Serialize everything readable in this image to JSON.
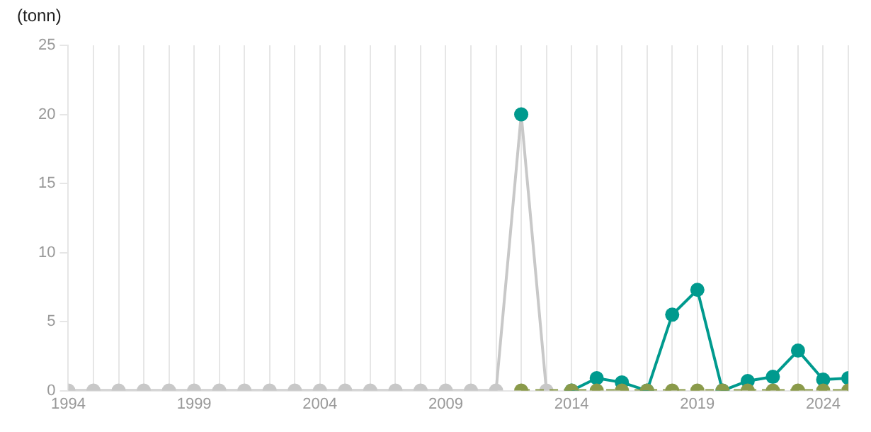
{
  "chart_data": {
    "type": "line",
    "ylabel": "(tonn)",
    "xlim": [
      1994,
      2025
    ],
    "ylim": [
      0,
      25
    ],
    "yticks": [
      0,
      5,
      10,
      15,
      20,
      25
    ],
    "xticks": [
      1994,
      {
        "value": 1995,
        "label": null
      },
      {
        "value": 1996,
        "label": null
      },
      {
        "value": 1997,
        "label": null
      },
      {
        "value": 1998,
        "label": null
      },
      1999,
      {
        "value": 2000,
        "label": null
      },
      {
        "value": 2001,
        "label": null
      },
      {
        "value": 2002,
        "label": null
      },
      {
        "value": 2003,
        "label": null
      },
      2004,
      {
        "value": 2005,
        "label": null
      },
      {
        "value": 2006,
        "label": null
      },
      {
        "value": 2007,
        "label": null
      },
      {
        "value": 2008,
        "label": null
      },
      2009,
      {
        "value": 2010,
        "label": null
      },
      {
        "value": 2011,
        "label": null
      },
      {
        "value": 2012,
        "label": null
      },
      {
        "value": 2013,
        "label": null
      },
      2014,
      {
        "value": 2015,
        "label": null
      },
      {
        "value": 2016,
        "label": null
      },
      {
        "value": 2017,
        "label": null
      },
      {
        "value": 2018,
        "label": null
      },
      2019,
      {
        "value": 2020,
        "label": null
      },
      {
        "value": 2021,
        "label": null
      },
      {
        "value": 2022,
        "label": null
      },
      {
        "value": 2023,
        "label": null
      },
      2024,
      {
        "value": 2025,
        "label": null
      }
    ],
    "grid": "x",
    "marker": "circle",
    "legend": false,
    "series": [
      {
        "color": "#c8c8c8",
        "line_style": "solid",
        "x": [
          1994,
          1995,
          1996,
          1997,
          1998,
          1999,
          2000,
          2001,
          2002,
          2003,
          2004,
          2005,
          2006,
          2007,
          2008,
          2009,
          2010,
          2011,
          2012,
          2013
        ],
        "values": [
          0,
          0,
          0,
          0,
          0,
          0,
          0,
          0,
          0,
          0,
          0,
          0,
          0,
          0,
          0,
          0,
          0,
          0,
          20,
          0
        ]
      },
      {
        "color": "#009a8e",
        "line_style": "solid",
        "x": [
          2012,
          2013,
          2014,
          2015,
          2016,
          2017,
          2018,
          2019,
          2020,
          2021,
          2022,
          2023,
          2024,
          2025
        ],
        "values": [
          20,
          null,
          0,
          0.9,
          0.6,
          0,
          5.5,
          7.3,
          0,
          0.7,
          1,
          2.9,
          0.8,
          0.9
        ]
      },
      {
        "color": "#8a9a4a",
        "line_style": "dashed",
        "x": [
          2012,
          2014,
          2015,
          2016,
          2017,
          2018,
          2019,
          2020,
          2021,
          2022,
          2023,
          2024,
          2025
        ],
        "values": [
          0,
          0,
          0,
          0,
          0,
          0,
          0,
          0,
          0,
          0,
          0,
          0,
          0
        ]
      }
    ]
  }
}
